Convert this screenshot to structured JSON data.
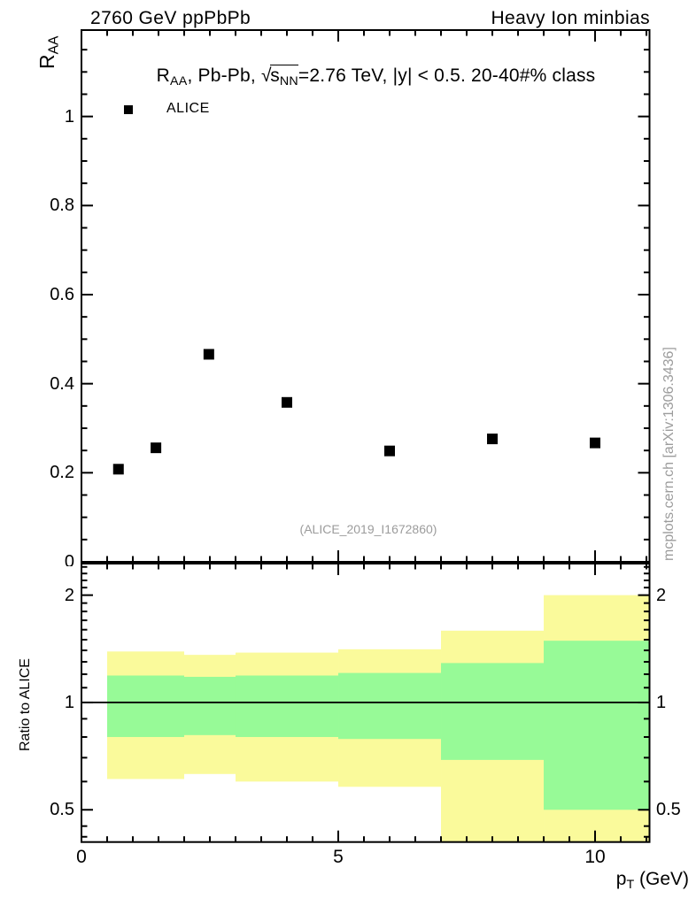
{
  "page": {
    "header_left": "2760 GeV ppPbPb",
    "header_right": "Heavy Ion minbias",
    "watermark": "(ALICE_2019_I1672860)",
    "side_note": "mcplots.cern.ch [arXiv:1306.3436]"
  },
  "colors": {
    "band_outer": "#fafa9b",
    "band_inner": "#97fa97",
    "marker": "#000000",
    "frame": "#000000",
    "muted_text": "#9c9c9c"
  },
  "chart_data": {
    "type": "scatter",
    "x_axis": {
      "label_text": "pT (GeV)",
      "label_parts": [
        {
          "text": "p"
        },
        {
          "text": "T",
          "style": "sub"
        },
        {
          "text": " (GeV)"
        }
      ],
      "lim": [
        0,
        11.06
      ],
      "major_ticks": [
        {
          "v": 0,
          "label": "0"
        },
        {
          "v": 5,
          "label": "5"
        },
        {
          "v": 10,
          "label": "10"
        }
      ],
      "minor_step": 0.5
    },
    "main_panel": {
      "title_text": "RAA, Pb-Pb, √sNN=2.76 TeV, |y| < 0.5. 20-40#% class",
      "title_parts": [
        {
          "text": "R"
        },
        {
          "text": "AA",
          "style": "sub"
        },
        {
          "text": ", Pb-Pb, "
        },
        {
          "text": "√",
          "style": "sqrt"
        },
        {
          "style": "over",
          "parts": [
            {
              "text": "s"
            },
            {
              "text": "NN",
              "style": "sub"
            }
          ]
        },
        {
          "text": "=2.76 TeV, |y| < 0.5. 20-40#% class"
        }
      ],
      "ylabel_text": "RAA",
      "ylabel_parts": [
        {
          "text": "R"
        },
        {
          "text": "AA",
          "style": "sub"
        }
      ],
      "ylim": [
        0,
        1.194
      ],
      "ytick_labels": [
        {
          "v": 0,
          "label": "0"
        },
        {
          "v": 0.2,
          "label": "0.2"
        },
        {
          "v": 0.4,
          "label": "0.4"
        },
        {
          "v": 0.6,
          "label": "0.6"
        },
        {
          "v": 0.8,
          "label": "0.8"
        },
        {
          "v": 1,
          "label": "1"
        }
      ],
      "minor_step": 0.05,
      "legend": {
        "entries": [
          {
            "label": "ALICE",
            "marker": "black-filled-square"
          }
        ]
      },
      "series": [
        {
          "name": "ALICE",
          "marker": "square",
          "color": "#000000",
          "x": [
            0.72,
            1.45,
            2.48,
            4.0,
            6.0,
            8.0,
            10.0
          ],
          "y": [
            0.208,
            0.256,
            0.466,
            0.358,
            0.249,
            0.276,
            0.267
          ]
        }
      ]
    },
    "ratio_panel": {
      "ylabel": "Ratio to ALICE",
      "yscale": "log",
      "ylim": [
        0.406,
        2.452
      ],
      "ytick_labels": [
        {
          "v": 0.5,
          "label": "0.5"
        },
        {
          "v": 1,
          "label": "1"
        },
        {
          "v": 2,
          "label": "2"
        }
      ],
      "minor_ticks": [
        0.42,
        0.45,
        0.6,
        0.7,
        0.8,
        0.9,
        1.1,
        1.2,
        1.3,
        1.4,
        1.5,
        1.6,
        1.7,
        1.8,
        1.9,
        2.1,
        2.2,
        2.3,
        2.4
      ],
      "reference_line": 1,
      "bin_edges": [
        0.5,
        2,
        3,
        5,
        7,
        9,
        11.06
      ],
      "bands": {
        "outer": {
          "color_key": "band_outer",
          "hi": [
            1.39,
            1.36,
            1.38,
            1.41,
            1.59,
            2.0
          ],
          "lo": [
            0.61,
            0.63,
            0.6,
            0.58,
            0.406,
            0.406
          ]
        },
        "inner": {
          "color_key": "band_inner",
          "hi": [
            1.19,
            1.18,
            1.19,
            1.21,
            1.29,
            1.49
          ],
          "lo": [
            0.8,
            0.81,
            0.8,
            0.79,
            0.69,
            0.5
          ]
        }
      }
    }
  }
}
